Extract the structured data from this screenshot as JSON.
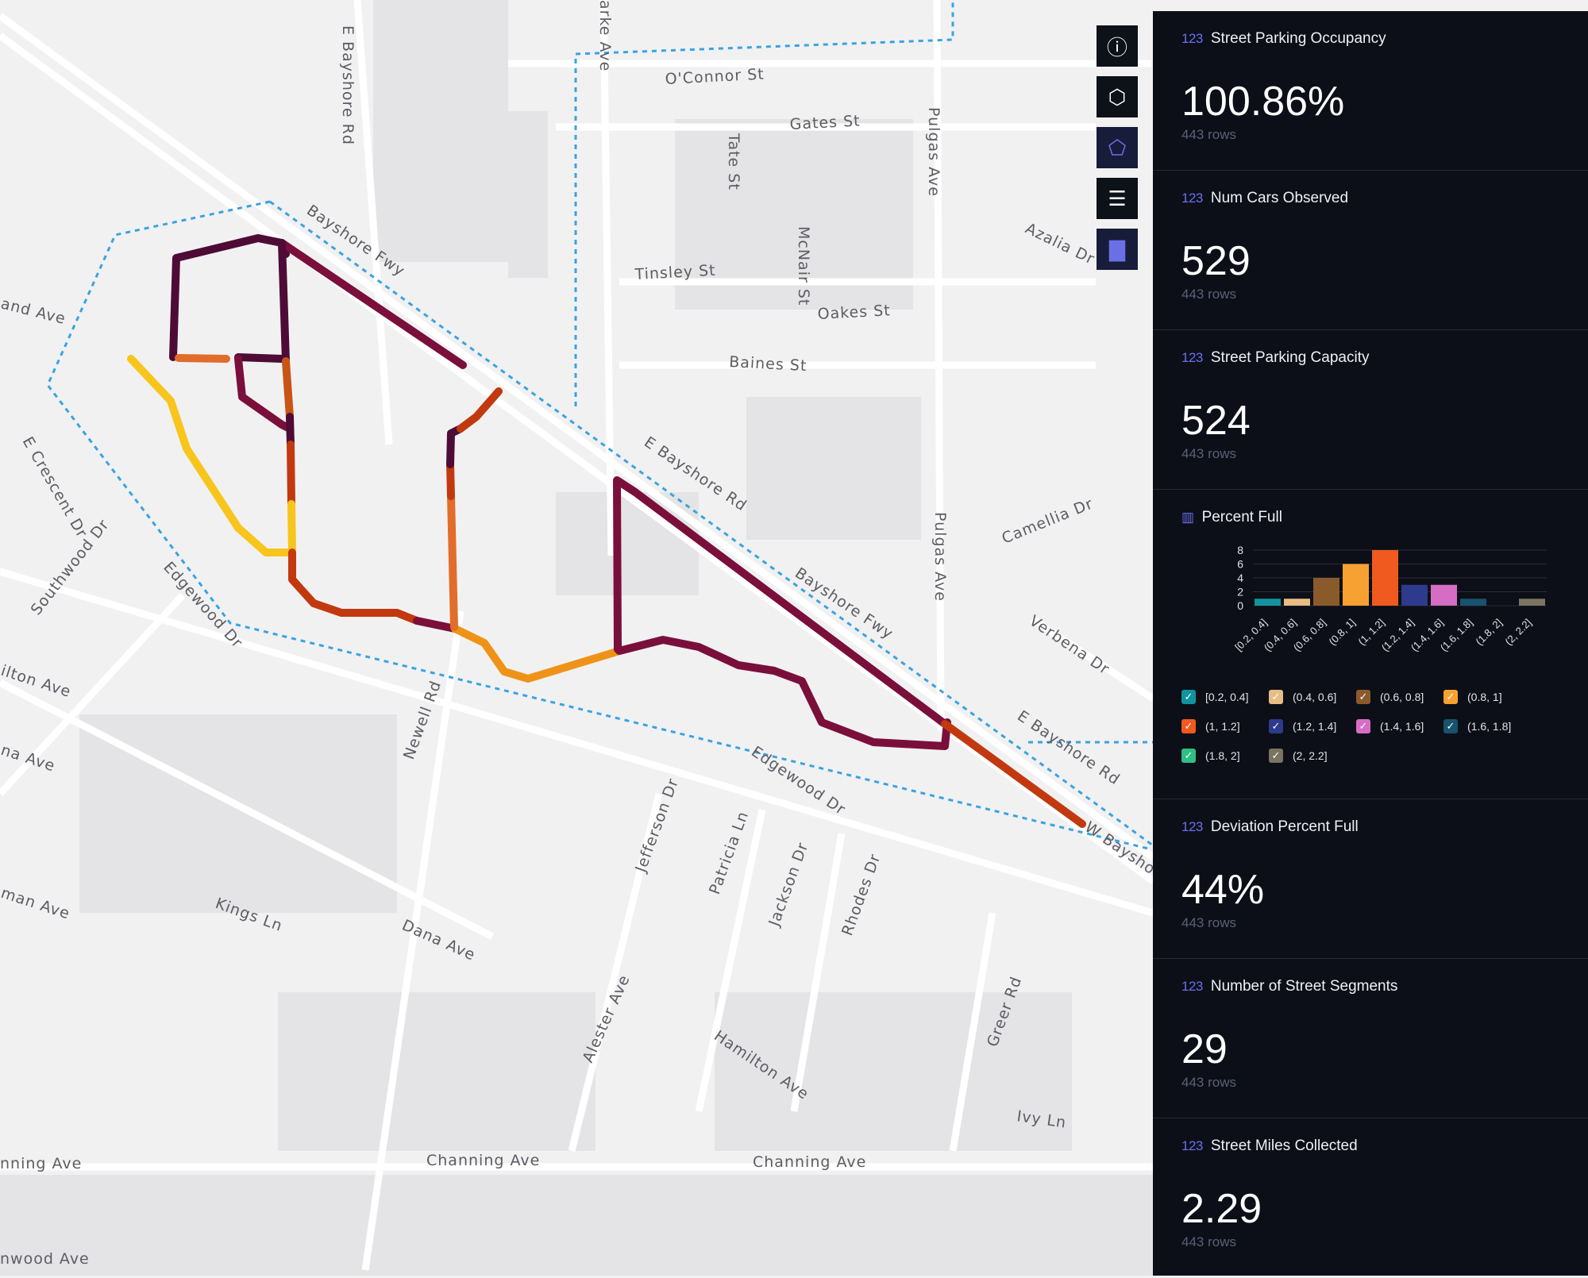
{
  "map": {
    "street_labels": [
      "O'Connor St",
      "Gates St",
      "Tate St",
      "Pulgas Ave",
      "E Bayshore Rd",
      "Bayshore Fwy",
      "Tinsley St",
      "McNair St",
      "Oakes St",
      "Azalia Dr",
      "Baines St",
      "and Ave",
      "E Crescent Dr",
      "Southwood Dr",
      "E Bayshore Rd",
      "Camellia Dr",
      "Pulgas Ave",
      "Bayshore Fwy",
      "Verbena Dr",
      "Edgewood Dr",
      "ilton Ave",
      "Newell Rd",
      "na Ave",
      "Edgewood Dr",
      "E Bayshore Rd",
      "W Baysho",
      "man Ave",
      "Kings Ln",
      "Dana Ave",
      "Jefferson Dr",
      "Patricia Ln",
      "Jackson Dr",
      "Rhodes Dr",
      "Alester Ave",
      "Hamilton Ave",
      "Greer Rd",
      "Ivy Ln",
      "nning Ave",
      "Channing Ave",
      "Channing Ave",
      "nwood Ave",
      "arke Ave"
    ]
  },
  "toolbar": {
    "buttons": [
      {
        "icon": "info-icon",
        "glyph": "ⓘ"
      },
      {
        "icon": "cube-icon",
        "glyph": "⬡"
      },
      {
        "icon": "polygon-icon",
        "glyph": "⬠"
      },
      {
        "icon": "list-icon",
        "glyph": "☰"
      },
      {
        "icon": "bar-chart-icon",
        "glyph": "▇"
      }
    ]
  },
  "panel": {
    "cards": [
      {
        "icon": "123",
        "title": "Street Parking Occupancy",
        "value": "100.86%",
        "rows": "443 rows"
      },
      {
        "icon": "123",
        "title": "Num Cars Observed",
        "value": "529",
        "rows": "443 rows"
      },
      {
        "icon": "123",
        "title": "Street Parking Capacity",
        "value": "524",
        "rows": "443 rows"
      }
    ],
    "cards2": [
      {
        "icon": "123",
        "title": "Deviation Percent Full",
        "value": "44%",
        "rows": "443 rows"
      },
      {
        "icon": "123",
        "title": "Number of Street Segments",
        "value": "29",
        "rows": "443 rows"
      },
      {
        "icon": "123",
        "title": "Street Miles Collected",
        "value": "2.29",
        "rows": "443 rows"
      }
    ]
  },
  "chart_data": {
    "type": "bar",
    "title": "Percent Full",
    "categories": [
      "[0.2, 0.4]",
      "(0.4, 0.6]",
      "(0.6, 0.8]",
      "(0.8, 1]",
      "(1, 1.2]",
      "(1.2, 1.4]",
      "(1.4, 1.6]",
      "(1.6, 1.8]",
      "(1.8, 2]",
      "(2, 2.2]"
    ],
    "values": [
      1,
      1,
      4,
      6,
      8,
      3,
      3,
      1,
      0,
      1
    ],
    "colors": [
      "#12949f",
      "#e7bd85",
      "#8b5a2b",
      "#f7a132",
      "#f05a1e",
      "#2e3a8c",
      "#d66dc4",
      "#17536d",
      "#2fbf84",
      "#7a7460"
    ],
    "y_ticks": [
      "8",
      "6",
      "4",
      "2",
      "0"
    ],
    "ylim": [
      0,
      8
    ],
    "legend": [
      "[0.2, 0.4]",
      "(0.4, 0.6]",
      "(0.6, 0.8]",
      "(0.8, 1]",
      "(1, 1.2]",
      "(1.2, 1.4]",
      "(1.4, 1.6]",
      "(1.6, 1.8]",
      "(1.8, 2]",
      "(2, 2.2]"
    ]
  }
}
